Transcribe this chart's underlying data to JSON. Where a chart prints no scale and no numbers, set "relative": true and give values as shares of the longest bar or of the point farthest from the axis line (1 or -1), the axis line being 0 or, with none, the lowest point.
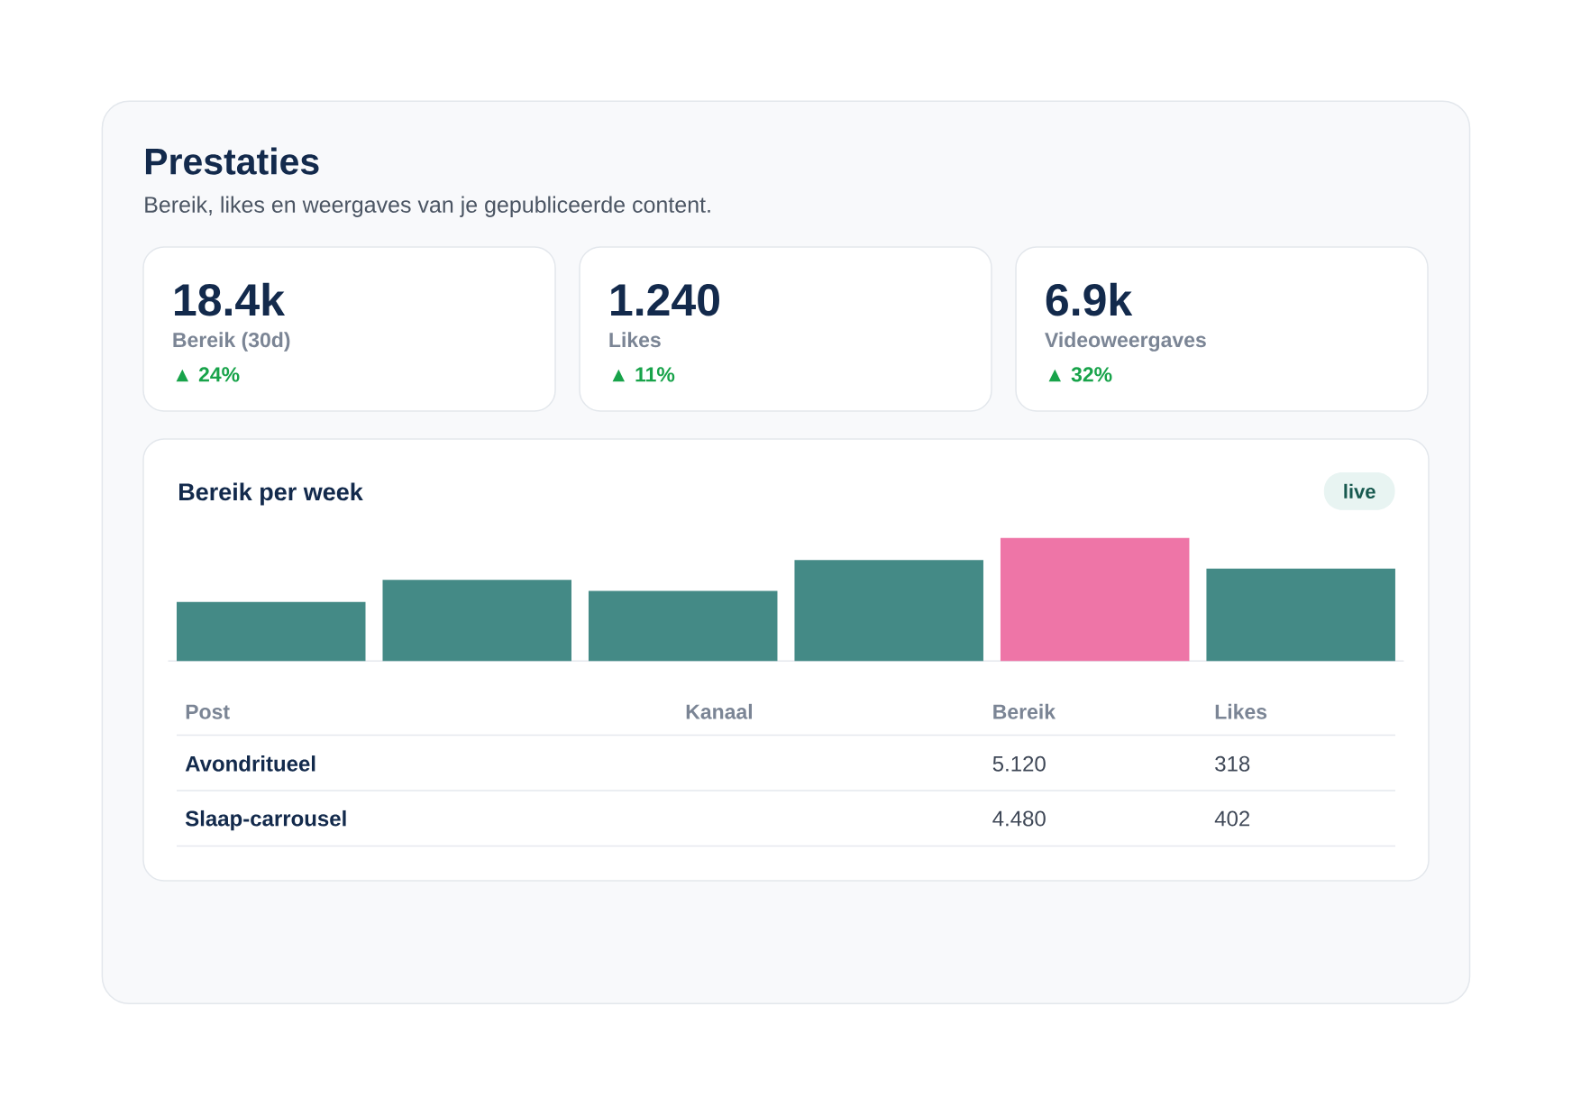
{
  "chart_data": [
    {
      "type": "other",
      "title": "Prestaties",
      "subtitle": "Bereik, likes en weergaves van je gepubliceerde content.",
      "annotations": [
        "18.4k",
        "Bereik (30d)",
        "▲ 24%",
        "1.240",
        "Likes",
        "▲ 11%",
        "6.9k",
        "Videoweergaves",
        "▲ 32%"
      ]
    },
    {
      "type": "bar",
      "title": "Bereik per week",
      "categories": [
        null,
        null,
        null,
        null,
        null,
        null
      ],
      "values": [
        0.48,
        0.66,
        0.57,
        0.82,
        1,
        0.75
      ],
      "colors": [
        "#448a86",
        "#448a86",
        "#448a86",
        "#448a86",
        "#ee75a7",
        "#448a86"
      ],
      "relative": true,
      "annotations": [
        "live"
      ]
    },
    {
      "type": "other",
      "annotations": [
        "Post",
        "Kanaal",
        "Bereik",
        "Likes",
        "Avondritueel",
        "5.120",
        "318",
        "Slaap-carrousel",
        "4.480",
        "402"
      ]
    }
  ]
}
